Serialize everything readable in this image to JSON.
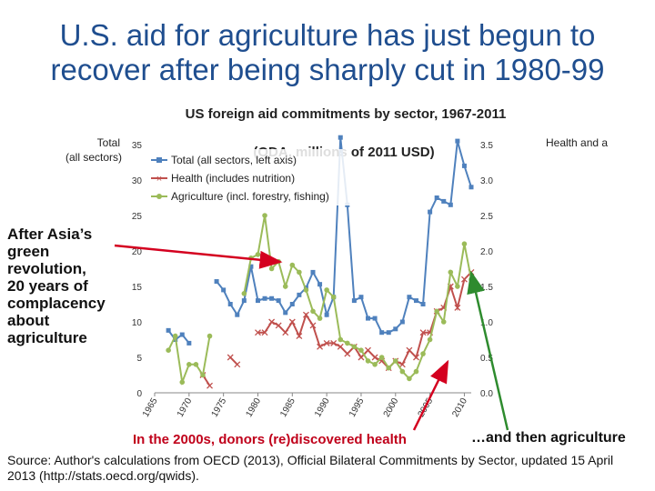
{
  "title_line1": "U.S. aid for agriculture has just begun to",
  "title_line2": "recover after being sharply cut in 1980-99",
  "left_annotation": [
    "After Asia’s",
    "green",
    "revolution,",
    "20 years of",
    "complacency",
    "about",
    "agriculture"
  ],
  "footnote_health": "In the 2000s, donors (re)discovered health",
  "footnote_agri": "…and then agriculture",
  "source": "Source:  Author's calculations from OECD (2013), Official Bilateral Commitments by Sector, updated 15 April 2013 (http://stats.oecd.org/qwids).",
  "colors": {
    "title": "#1f4e8f",
    "total": "#4f81bd",
    "health": "#c0504d",
    "agri": "#9bbb59",
    "arrow_red": "#d4001f",
    "arrow_green": "#2e8b2e"
  },
  "chart_data": {
    "type": "line",
    "title": "US foreign aid commitments by sector, 1967-2011",
    "subtitle": "(ODA, millions of 2011 USD)",
    "ylabel_left": "Total (all sectors)",
    "ylabel_left_parts": [
      "Total",
      "(all sectors)"
    ],
    "ylabel_right": "Health and a",
    "ylim_left": [
      0,
      35
    ],
    "yticks_left": [
      "0",
      "5",
      "10",
      "15",
      "20",
      "25",
      "30",
      "35"
    ],
    "ylim_right": [
      0,
      3.5
    ],
    "yticks_right": [
      "0.0",
      "0.5",
      "1.0",
      "1.5",
      "2.0",
      "2.5",
      "3.0",
      "3.5"
    ],
    "xlim": [
      1965,
      2011
    ],
    "xticks": [
      "1965",
      "1970",
      "1975",
      "1980",
      "1985",
      "1990",
      "1995",
      "2000",
      "2005",
      "2010"
    ],
    "legend": [
      "Total (all sectors, left axis)",
      "Health (includes nutrition)",
      "Agriculture (incl. forestry, fishing)"
    ],
    "series": [
      {
        "name": "Total (all sectors, left axis)",
        "axis": "left",
        "x": [
          1967,
          1968,
          1969,
          1970,
          1971,
          1972,
          1973,
          1974,
          1975,
          1976,
          1977,
          1978,
          1979,
          1980,
          1981,
          1982,
          1983,
          1984,
          1985,
          1986,
          1987,
          1988,
          1989,
          1990,
          1991,
          1992,
          1993,
          1994,
          1995,
          1996,
          1997,
          1998,
          1999,
          2000,
          2001,
          2002,
          2003,
          2004,
          2005,
          2006,
          2007,
          2008,
          2009,
          2010,
          2011
        ],
        "values": [
          8.8,
          7.5,
          8.2,
          7.0,
          null,
          null,
          null,
          15.7,
          14.5,
          12.5,
          11.0,
          13.0,
          17.8,
          13.0,
          13.3,
          13.3,
          13.0,
          11.3,
          12.5,
          13.8,
          14.8,
          17.0,
          15.3,
          11.0,
          13.5,
          36.0,
          26.5,
          13.0,
          13.5,
          10.5,
          10.5,
          8.5,
          8.5,
          9.0,
          10.0,
          13.5,
          13.0,
          12.5,
          25.5,
          27.5,
          27.0,
          26.5,
          35.5,
          32.0,
          29.0
        ]
      },
      {
        "name": "Health (includes nutrition)",
        "axis": "right",
        "x": [
          1967,
          1968,
          1969,
          1970,
          1971,
          1972,
          1973,
          1974,
          1975,
          1976,
          1977,
          1978,
          1979,
          1980,
          1981,
          1982,
          1983,
          1984,
          1985,
          1986,
          1987,
          1988,
          1989,
          1990,
          1991,
          1992,
          1993,
          1994,
          1995,
          1996,
          1997,
          1998,
          1999,
          2000,
          2001,
          2002,
          2003,
          2004,
          2005,
          2006,
          2007,
          2008,
          2009,
          2010,
          2011
        ],
        "values": [
          null,
          null,
          null,
          null,
          null,
          0.25,
          0.1,
          null,
          null,
          0.5,
          0.4,
          null,
          null,
          0.85,
          0.85,
          1.0,
          0.95,
          0.85,
          1.0,
          0.8,
          1.1,
          0.95,
          0.65,
          0.7,
          0.7,
          0.65,
          0.55,
          0.65,
          0.5,
          0.6,
          0.5,
          0.45,
          0.35,
          0.45,
          0.4,
          0.6,
          0.5,
          0.85,
          0.85,
          1.15,
          1.2,
          1.5,
          1.2,
          1.6,
          1.7
        ]
      },
      {
        "name": "Agriculture (incl. forestry, fishing)",
        "axis": "right",
        "x": [
          1967,
          1968,
          1969,
          1970,
          1971,
          1972,
          1973,
          1974,
          1975,
          1976,
          1977,
          1978,
          1979,
          1980,
          1981,
          1982,
          1983,
          1984,
          1985,
          1986,
          1987,
          1988,
          1989,
          1990,
          1991,
          1992,
          1993,
          1994,
          1995,
          1996,
          1997,
          1998,
          1999,
          2000,
          2001,
          2002,
          2003,
          2004,
          2005,
          2006,
          2007,
          2008,
          2009,
          2010,
          2011
        ],
        "values": [
          0.6,
          0.8,
          0.15,
          0.4,
          0.4,
          0.25,
          0.8,
          null,
          null,
          null,
          null,
          1.4,
          1.9,
          1.95,
          2.5,
          1.75,
          1.85,
          1.5,
          1.8,
          1.7,
          1.45,
          1.15,
          1.05,
          1.45,
          1.35,
          0.75,
          0.7,
          0.65,
          0.6,
          0.45,
          0.4,
          0.5,
          0.35,
          0.45,
          0.3,
          0.2,
          0.3,
          0.55,
          0.75,
          1.15,
          1.0,
          1.7,
          1.5,
          2.1,
          1.6
        ]
      }
    ]
  }
}
